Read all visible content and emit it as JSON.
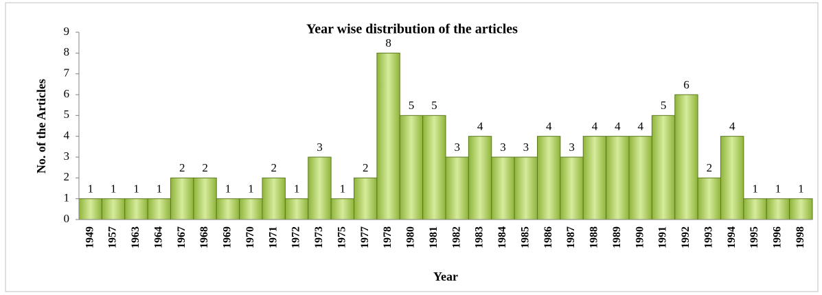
{
  "chart_data": {
    "type": "bar",
    "title": "Year wise distribution of the articles",
    "x_label": "Year",
    "y_label": "No. of the Articles",
    "categories": [
      "1949",
      "1957",
      "1963",
      "1964",
      "1967",
      "1968",
      "1969",
      "1970",
      "1971",
      "1972",
      "1973",
      "1975",
      "1977",
      "1978",
      "1980",
      "1981",
      "1982",
      "1983",
      "1984",
      "1985",
      "1986",
      "1987",
      "1988",
      "1989",
      "1990",
      "1991",
      "1992",
      "1993",
      "1994",
      "1995",
      "1996",
      "1998"
    ],
    "values": [
      1,
      1,
      1,
      1,
      2,
      2,
      1,
      1,
      2,
      1,
      3,
      1,
      2,
      8,
      5,
      5,
      3,
      4,
      3,
      3,
      4,
      3,
      4,
      4,
      4,
      5,
      6,
      2,
      4,
      1,
      1,
      1
    ],
    "color": "#8fb43a",
    "ylim": [
      0,
      9
    ],
    "yticks": [
      0,
      1,
      2,
      3,
      4,
      5,
      6,
      7,
      8,
      9
    ],
    "grid": false
  }
}
